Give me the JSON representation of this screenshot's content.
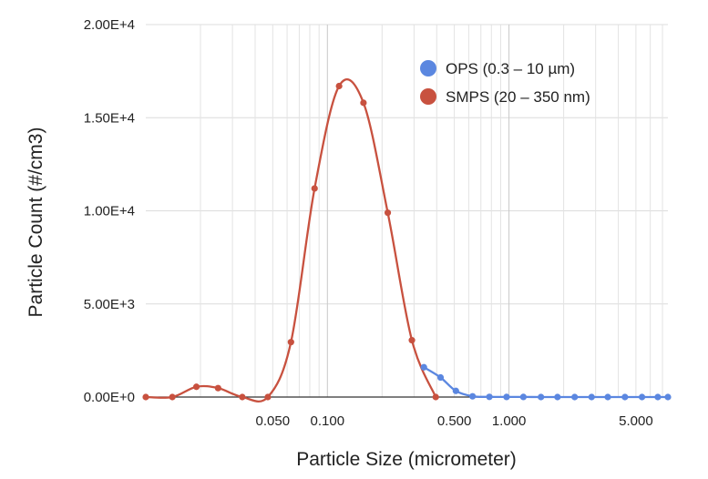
{
  "chart_data": {
    "type": "line",
    "title": "",
    "xlabel": "Particle Size (micrometer)",
    "ylabel": "Particle Count (#/cm3)",
    "x_scale": "log",
    "xlim": [
      0.01,
      7.5
    ],
    "ylim": [
      0,
      20000
    ],
    "grid": true,
    "legend_position": "top-right",
    "x_ticks": [
      {
        "value": 0.05,
        "label": "0.050"
      },
      {
        "value": 0.1,
        "label": "0.100"
      },
      {
        "value": 0.5,
        "label": "0.500"
      },
      {
        "value": 1.0,
        "label": "1.000"
      },
      {
        "value": 5.0,
        "label": "5.000"
      }
    ],
    "y_ticks": [
      {
        "value": 0,
        "label": "0.00E+0"
      },
      {
        "value": 5000,
        "label": "5.00E+3"
      },
      {
        "value": 10000,
        "label": "1.00E+4"
      },
      {
        "value": 15000,
        "label": "1.50E+4"
      },
      {
        "value": 20000,
        "label": "2.00E+4"
      }
    ],
    "series": [
      {
        "name": "OPS (0.3 – 10 µm)",
        "color": "#5b87e0",
        "points": [
          {
            "x": 0.34,
            "y": 1600
          },
          {
            "x": 0.42,
            "y": 1050
          },
          {
            "x": 0.51,
            "y": 330
          },
          {
            "x": 0.63,
            "y": 40
          },
          {
            "x": 0.78,
            "y": 10
          },
          {
            "x": 0.97,
            "y": 5
          },
          {
            "x": 1.2,
            "y": 5
          },
          {
            "x": 1.5,
            "y": 0
          },
          {
            "x": 1.85,
            "y": 0
          },
          {
            "x": 2.3,
            "y": 0
          },
          {
            "x": 2.85,
            "y": 0
          },
          {
            "x": 3.5,
            "y": 0
          },
          {
            "x": 4.35,
            "y": 0
          },
          {
            "x": 5.4,
            "y": 0
          },
          {
            "x": 6.6,
            "y": 0
          },
          {
            "x": 7.5,
            "y": 0
          }
        ]
      },
      {
        "name": "SMPS (20 – 350 nm)",
        "color": "#c8513f",
        "points": [
          {
            "x": 0.01,
            "y": 0
          },
          {
            "x": 0.014,
            "y": 0
          },
          {
            "x": 0.019,
            "y": 550
          },
          {
            "x": 0.025,
            "y": 480
          },
          {
            "x": 0.034,
            "y": 0
          },
          {
            "x": 0.047,
            "y": 0
          },
          {
            "x": 0.063,
            "y": 2950
          },
          {
            "x": 0.085,
            "y": 11200
          },
          {
            "x": 0.116,
            "y": 16700
          },
          {
            "x": 0.158,
            "y": 15800
          },
          {
            "x": 0.215,
            "y": 9900
          },
          {
            "x": 0.292,
            "y": 3050
          },
          {
            "x": 0.395,
            "y": 0
          }
        ]
      }
    ]
  }
}
